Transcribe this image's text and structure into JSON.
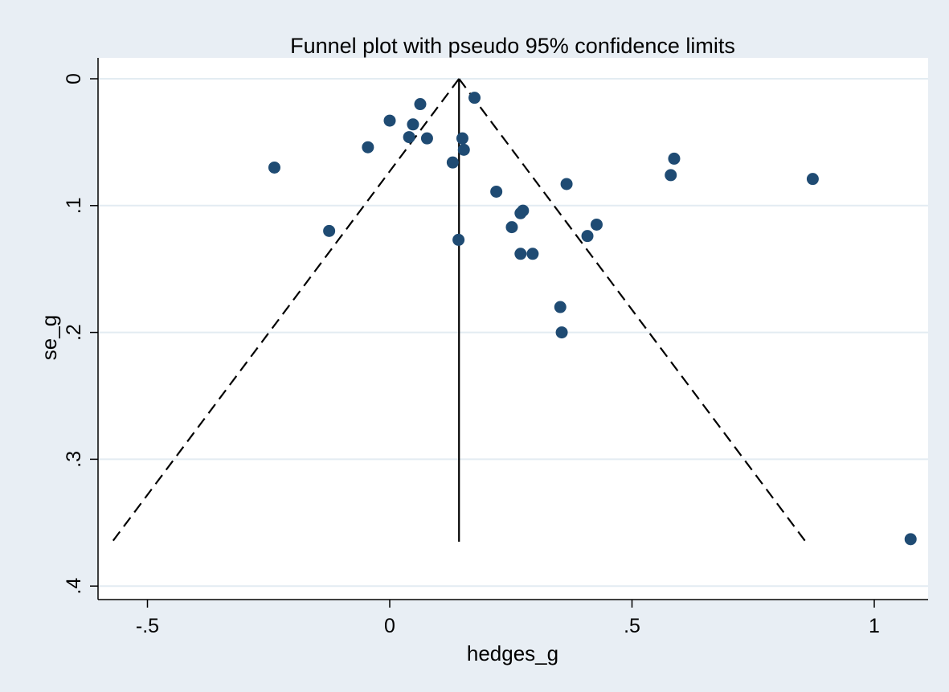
{
  "chart_data": {
    "type": "scatter",
    "title": "Funnel plot with pseudo 95% confidence limits",
    "xlabel": "hedges_g",
    "ylabel": "se_g",
    "xlim": [
      -0.6,
      1.12
    ],
    "ylim": [
      0,
      0.41
    ],
    "y_reversed": true,
    "grid": true,
    "x_ticks": [
      {
        "value": -0.5,
        "label": "-.5"
      },
      {
        "value": 0,
        "label": "0"
      },
      {
        "value": 0.5,
        "label": ".5"
      },
      {
        "value": 1,
        "label": "1"
      }
    ],
    "y_ticks": [
      {
        "value": 0,
        "label": "0"
      },
      {
        "value": 0.1,
        "label": ".1"
      },
      {
        "value": 0.2,
        "label": ".2"
      },
      {
        "value": 0.3,
        "label": ".3"
      },
      {
        "value": 0.4,
        "label": ".4"
      }
    ],
    "pooled_estimate": 0.143,
    "se_max": 0.365,
    "ci_z": 1.96,
    "points": [
      {
        "x": 0.175,
        "y": 0.015
      },
      {
        "x": 0.063,
        "y": 0.02
      },
      {
        "x": 0.0,
        "y": 0.033
      },
      {
        "x": 0.048,
        "y": 0.036
      },
      {
        "x": 0.04,
        "y": 0.046
      },
      {
        "x": 0.077,
        "y": 0.047
      },
      {
        "x": 0.15,
        "y": 0.047
      },
      {
        "x": -0.045,
        "y": 0.054
      },
      {
        "x": 0.153,
        "y": 0.056
      },
      {
        "x": 0.13,
        "y": 0.066
      },
      {
        "x": -0.238,
        "y": 0.07
      },
      {
        "x": 0.587,
        "y": 0.063
      },
      {
        "x": 0.58,
        "y": 0.076
      },
      {
        "x": 0.873,
        "y": 0.079
      },
      {
        "x": 0.365,
        "y": 0.083
      },
      {
        "x": 0.22,
        "y": 0.089
      },
      {
        "x": 0.275,
        "y": 0.104
      },
      {
        "x": 0.27,
        "y": 0.106
      },
      {
        "x": 0.427,
        "y": 0.115
      },
      {
        "x": 0.252,
        "y": 0.117
      },
      {
        "x": -0.125,
        "y": 0.12
      },
      {
        "x": 0.408,
        "y": 0.124
      },
      {
        "x": 0.142,
        "y": 0.127
      },
      {
        "x": 0.27,
        "y": 0.138
      },
      {
        "x": 0.295,
        "y": 0.138
      },
      {
        "x": 0.352,
        "y": 0.18
      },
      {
        "x": 0.355,
        "y": 0.2
      },
      {
        "x": 1.075,
        "y": 0.363
      }
    ]
  },
  "colors": {
    "background": "#e8eef4",
    "plot_area": "#ffffff",
    "grid": "#e3ecf2",
    "marker": "#1f4b73",
    "line": "#000000"
  }
}
